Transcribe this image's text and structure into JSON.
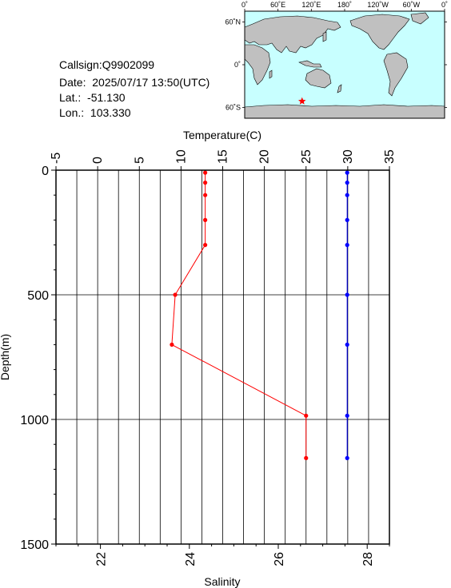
{
  "station": {
    "callsign_label": "Callsign:",
    "callsign": "Q9902099",
    "date_label": "Date:",
    "date": "2025/07/17 13:50(UTC)",
    "lat_label": "Lat.:",
    "lat": "-51.130",
    "lon_label": "Lon.:",
    "lon": "103.330"
  },
  "map": {
    "lon_ticks": [
      "0˚",
      "60˚E",
      "120˚E",
      "180˚",
      "120˚W",
      "60˚W",
      "0˚"
    ],
    "lat_ticks": [
      "60˚N",
      "0˚",
      "60˚S"
    ],
    "ocean_color": "#c8ffff",
    "land_color": "#c0c0c0",
    "marker_color": "#ff0000",
    "marker_icon": "star-icon",
    "marker_lon": 103.33,
    "marker_lat": -51.13
  },
  "chart_data": {
    "type": "line",
    "ylabel": "Depth(m)",
    "ylim": [
      0,
      1500
    ],
    "y_ticks": [
      "0",
      "500",
      "1000",
      "1500"
    ],
    "y_tick_values": [
      0,
      500,
      1000,
      1500
    ],
    "reversed_y": true,
    "grid": true,
    "temperature_axis": {
      "label": "Temperature(C)",
      "lim": [
        -5,
        35
      ],
      "ticks": [
        "-5",
        "0",
        "5",
        "10",
        "15",
        "20",
        "25",
        "30",
        "35"
      ],
      "tick_values": [
        -5,
        0,
        5,
        10,
        15,
        20,
        25,
        30,
        35
      ]
    },
    "salinity_axis": {
      "label": "Salinity",
      "lim": [
        21,
        28.5
      ],
      "ticks": [
        "22",
        "24",
        "26",
        "28"
      ],
      "tick_values": [
        22,
        24,
        26,
        28
      ]
    },
    "series": [
      {
        "axis": "temperature",
        "color": "#ff0000",
        "points": [
          {
            "depth": 10,
            "value": 12.9
          },
          {
            "depth": 50,
            "value": 12.9
          },
          {
            "depth": 100,
            "value": 12.9
          },
          {
            "depth": 200,
            "value": 12.9
          },
          {
            "depth": 300,
            "value": 12.9
          },
          {
            "depth": 500,
            "value": 9.3
          },
          {
            "depth": 700,
            "value": 8.9
          },
          {
            "depth": 985,
            "value": 25.0
          },
          {
            "depth": 1155,
            "value": 25.0
          }
        ]
      },
      {
        "axis": "salinity",
        "color": "#0000ff",
        "points": [
          {
            "depth": 10,
            "value": 27.55
          },
          {
            "depth": 50,
            "value": 27.55
          },
          {
            "depth": 100,
            "value": 27.55
          },
          {
            "depth": 200,
            "value": 27.55
          },
          {
            "depth": 300,
            "value": 27.55
          },
          {
            "depth": 500,
            "value": 27.55
          },
          {
            "depth": 700,
            "value": 27.55
          },
          {
            "depth": 985,
            "value": 27.55
          },
          {
            "depth": 1155,
            "value": 27.55
          }
        ]
      }
    ]
  }
}
